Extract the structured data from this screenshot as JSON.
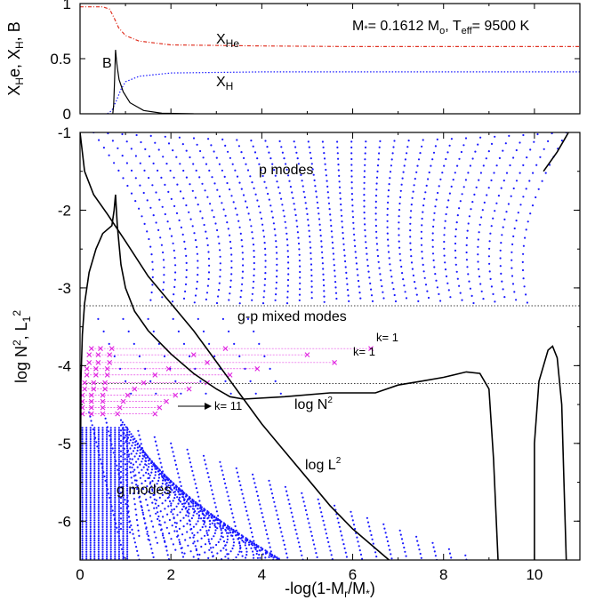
{
  "chart_data": [
    {
      "type": "line",
      "panel": "top",
      "ylabel": "X_He, X_H, B",
      "xlim": [
        0,
        11
      ],
      "ylim": [
        0,
        1
      ],
      "yticks": [
        "0",
        "0.5",
        "1"
      ],
      "legend_text": {
        "prefix": "M",
        "mid": "= 0.1612 M",
        "sun": "o",
        "teff": ", T",
        "teff_sub": "eff",
        "teff_val": "= 9500 K"
      },
      "series": [
        {
          "name": "X_He",
          "label_main": "X",
          "label_sub": "He",
          "color": "#e03020",
          "style": "dash-dot",
          "points": [
            [
              0,
              0.97
            ],
            [
              0.5,
              0.97
            ],
            [
              0.65,
              0.95
            ],
            [
              0.75,
              0.87
            ],
            [
              0.85,
              0.78
            ],
            [
              1.0,
              0.71
            ],
            [
              1.3,
              0.66
            ],
            [
              2,
              0.625
            ],
            [
              4,
              0.615
            ],
            [
              6,
              0.61
            ],
            [
              11,
              0.61
            ]
          ]
        },
        {
          "name": "X_H",
          "label_main": "X",
          "label_sub": "H",
          "color": "#1a1aff",
          "style": "dotted",
          "points": [
            [
              0.6,
              0
            ],
            [
              0.7,
              0.03
            ],
            [
              0.8,
              0.12
            ],
            [
              0.9,
              0.22
            ],
            [
              1.0,
              0.29
            ],
            [
              1.3,
              0.34
            ],
            [
              2,
              0.37
            ],
            [
              4,
              0.38
            ],
            [
              11,
              0.38
            ]
          ]
        },
        {
          "name": "B",
          "label_main": "B",
          "color": "#000000",
          "style": "solid",
          "points": [
            [
              0.72,
              0
            ],
            [
              0.74,
              0.08
            ],
            [
              0.76,
              0.3
            ],
            [
              0.78,
              0.58
            ],
            [
              0.8,
              0.49
            ],
            [
              0.82,
              0.42
            ],
            [
              0.86,
              0.31
            ],
            [
              0.95,
              0.2
            ],
            [
              1.1,
              0.1
            ],
            [
              1.4,
              0.03
            ],
            [
              1.8,
              0.005
            ],
            [
              2.5,
              0
            ]
          ]
        }
      ]
    },
    {
      "type": "scatter",
      "panel": "bottom",
      "xlabel": "-log(1-M_r/M_*)",
      "ylabel": "log N^2, L_1^2",
      "xlim": [
        0,
        11
      ],
      "ylim": [
        -6.5,
        -1
      ],
      "xticks": [
        "0",
        "2",
        "4",
        "6",
        "8",
        "10"
      ],
      "yticks": [
        "-1",
        "-2",
        "-3",
        "-4",
        "-5",
        "-6"
      ],
      "annotations": {
        "p_modes": "p modes",
        "gp_modes": "g-p mixed modes",
        "g_modes": "g modes",
        "logN2_main": "log N",
        "logN2_sup": "2",
        "logL2_main": "log L",
        "logL2_sup": "2",
        "k1a": "k= 1",
        "k1b": "k= 1",
        "k11": "k= 11"
      },
      "dashed_levels": [
        -3.23,
        -4.23
      ],
      "logN2_curve": [
        [
          0,
          -6.5
        ],
        [
          0.02,
          -4.2
        ],
        [
          0.05,
          -3.6
        ],
        [
          0.1,
          -3.2
        ],
        [
          0.2,
          -2.8
        ],
        [
          0.35,
          -2.5
        ],
        [
          0.5,
          -2.3
        ],
        [
          0.7,
          -2.2
        ],
        [
          0.75,
          -2.0
        ],
        [
          0.78,
          -1.8
        ],
        [
          0.82,
          -2.2
        ],
        [
          0.9,
          -2.7
        ],
        [
          1.0,
          -3.0
        ],
        [
          1.2,
          -3.3
        ],
        [
          1.5,
          -3.55
        ],
        [
          2,
          -3.85
        ],
        [
          2.5,
          -4.1
        ],
        [
          3,
          -4.3
        ],
        [
          3.3,
          -4.4
        ],
        [
          3.6,
          -4.43
        ],
        [
          4.5,
          -4.4
        ],
        [
          5.5,
          -4.35
        ],
        [
          6.5,
          -4.35
        ],
        [
          7.0,
          -4.25
        ],
        [
          7.5,
          -4.2
        ],
        [
          8.0,
          -4.15
        ],
        [
          8.5,
          -4.08
        ],
        [
          8.8,
          -4.1
        ],
        [
          9.0,
          -4.3
        ],
        [
          9.1,
          -5.2
        ],
        [
          9.2,
          -6.5
        ]
      ],
      "logN2_bump": [
        [
          10.0,
          -6.5
        ],
        [
          10.0,
          -5.0
        ],
        [
          10.1,
          -4.2
        ],
        [
          10.3,
          -3.8
        ],
        [
          10.4,
          -3.75
        ],
        [
          10.5,
          -3.9
        ],
        [
          10.6,
          -4.5
        ],
        [
          10.65,
          -5.5
        ],
        [
          10.7,
          -6.5
        ]
      ],
      "logL2_curve": [
        [
          0,
          -1
        ],
        [
          0.1,
          -1.5
        ],
        [
          0.3,
          -1.8
        ],
        [
          0.6,
          -2.05
        ],
        [
          1.0,
          -2.4
        ],
        [
          1.5,
          -2.85
        ],
        [
          2.0,
          -3.2
        ],
        [
          2.5,
          -3.55
        ],
        [
          3.0,
          -3.95
        ],
        [
          3.5,
          -4.35
        ],
        [
          4.0,
          -4.75
        ],
        [
          4.5,
          -5.1
        ],
        [
          5.0,
          -5.45
        ],
        [
          5.5,
          -5.8
        ],
        [
          6.0,
          -6.1
        ],
        [
          6.5,
          -6.35
        ],
        [
          6.8,
          -6.5
        ]
      ],
      "top_right_curve": [
        [
          10.2,
          -1.5
        ],
        [
          10.5,
          -1.25
        ],
        [
          10.75,
          -1.0
        ]
      ],
      "k_lines": [
        {
          "y": -3.78,
          "x_end": 6.4,
          "x_start": 0.25
        },
        {
          "y": -3.86,
          "x_end": 5.0,
          "x_start": 0.2
        },
        {
          "y": -3.96,
          "x_end": 5.6,
          "x_start": 0.2
        },
        {
          "y": -4.04,
          "x_end": 3.9,
          "x_start": 0.15
        },
        {
          "y": -4.12,
          "x_end": 3.3,
          "x_start": 0.15
        },
        {
          "y": -4.22,
          "x_end": 2.8,
          "x_start": 0.1
        },
        {
          "y": -4.3,
          "x_end": 2.4,
          "x_start": 0.1
        },
        {
          "y": -4.38,
          "x_end": 2.1,
          "x_start": 0.05
        },
        {
          "y": -4.46,
          "x_end": 1.9,
          "x_start": 0.05
        },
        {
          "y": -4.54,
          "x_end": 1.75,
          "x_start": 0.05
        },
        {
          "y": -4.62,
          "x_end": 1.65,
          "x_start": 0.05
        }
      ]
    }
  ]
}
